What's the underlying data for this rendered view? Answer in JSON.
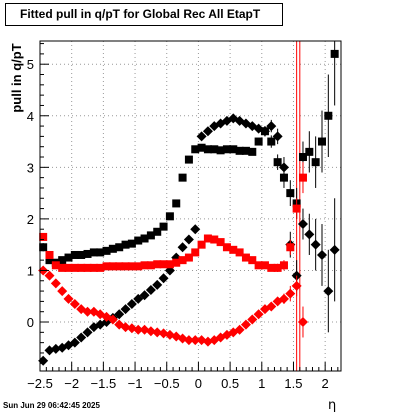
{
  "title": "Fitted pull in q/pT for Global Rec All EtapT",
  "ylabel": "pull in q/pT",
  "xlabel": "η",
  "datestamp": "Sun Jun 29 06:42:45 2025",
  "colors": {
    "black": "#000000",
    "red": "#ff0000",
    "grid": "#999999"
  },
  "chart_data": {
    "type": "scatter",
    "title": "Fitted pull in q/pT for Global Rec All EtapT",
    "xlabel": "η",
    "ylabel": "pull in q/pT",
    "xlim": [
      -2.5,
      2.25
    ],
    "ylim": [
      -0.95,
      5.45
    ],
    "xticks": [
      -2.5,
      -2,
      -1.5,
      -1,
      -0.5,
      0,
      0.5,
      1,
      1.5,
      2
    ],
    "xtick_labels": [
      "−2.5",
      "−2",
      "−1.5",
      "−1",
      "−0.5",
      "0",
      "0.5",
      "1",
      "1.5",
      "2"
    ],
    "yticks": [
      0,
      1,
      2,
      3,
      4,
      5
    ],
    "ytick_labels": [
      "0",
      "1",
      "2",
      "3",
      "4",
      "5"
    ],
    "grid": true,
    "vertical_lines": [
      1.55,
      1.6
    ],
    "series": [
      {
        "color": "#000000",
        "marker": "square",
        "x": [
          -2.45,
          -2.35,
          -2.25,
          -2.15,
          -2.05,
          -1.95,
          -1.85,
          -1.75,
          -1.65,
          -1.55,
          -1.45,
          -1.35,
          -1.25,
          -1.15,
          -1.05,
          -0.95,
          -0.85,
          -0.75,
          -0.65,
          -0.55,
          -0.45,
          -0.35,
          -0.25,
          -0.15,
          -0.05,
          0.05,
          0.15,
          0.25,
          0.35,
          0.45,
          0.55,
          0.65,
          0.75,
          0.85,
          0.95,
          1.05,
          1.15,
          1.25,
          1.35,
          1.45,
          1.55,
          1.65,
          1.75,
          1.85,
          1.95,
          2.05,
          2.15
        ],
        "y": [
          1.45,
          1.2,
          1.15,
          1.2,
          1.25,
          1.3,
          1.3,
          1.32,
          1.35,
          1.35,
          1.38,
          1.42,
          1.45,
          1.5,
          1.52,
          1.58,
          1.62,
          1.68,
          1.75,
          1.85,
          2.05,
          2.3,
          2.8,
          3.15,
          3.35,
          3.38,
          3.35,
          3.35,
          3.33,
          3.35,
          3.35,
          3.32,
          3.32,
          3.3,
          3.5,
          3.7,
          3.5,
          3.1,
          2.8,
          2.5,
          2.3,
          3.2,
          3.3,
          3.1,
          3.5,
          4.0,
          5.2
        ],
        "yerr": [
          0.08,
          0.05,
          0.04,
          0.04,
          0.04,
          0.04,
          0.04,
          0.04,
          0.04,
          0.04,
          0.04,
          0.04,
          0.04,
          0.04,
          0.04,
          0.04,
          0.04,
          0.04,
          0.04,
          0.05,
          0.05,
          0.06,
          0.06,
          0.06,
          0.06,
          0.06,
          0.06,
          0.06,
          0.06,
          0.06,
          0.06,
          0.06,
          0.06,
          0.06,
          0.07,
          0.1,
          0.12,
          0.15,
          0.2,
          0.25,
          0.3,
          0.3,
          0.4,
          0.5,
          0.6,
          0.8,
          1.0
        ]
      },
      {
        "color": "#000000",
        "marker": "diamond",
        "x": [
          -2.45,
          -2.35,
          -2.25,
          -2.15,
          -2.05,
          -1.95,
          -1.85,
          -1.75,
          -1.65,
          -1.55,
          -1.45,
          -1.35,
          -1.25,
          -1.15,
          -1.05,
          -0.95,
          -0.85,
          -0.75,
          -0.65,
          -0.55,
          -0.45,
          -0.35,
          -0.25,
          -0.15,
          -0.05,
          0.05,
          0.15,
          0.25,
          0.35,
          0.45,
          0.55,
          0.65,
          0.75,
          0.85,
          0.95,
          1.05,
          1.15,
          1.25,
          1.35,
          1.45,
          1.55,
          1.65,
          1.75,
          1.85,
          1.95,
          2.05,
          2.15
        ],
        "y": [
          -0.75,
          -0.55,
          -0.52,
          -0.5,
          -0.45,
          -0.4,
          -0.3,
          -0.2,
          -0.1,
          -0.05,
          0.0,
          0.08,
          0.15,
          0.25,
          0.35,
          0.45,
          0.52,
          0.62,
          0.72,
          0.85,
          1.0,
          1.25,
          1.45,
          1.6,
          1.8,
          3.6,
          3.7,
          3.8,
          3.85,
          3.9,
          3.95,
          3.9,
          3.85,
          3.8,
          3.75,
          3.7,
          3.8,
          3.6,
          3.0,
          1.5,
          0.9,
          1.9,
          1.7,
          1.5,
          1.3,
          0.6,
          1.4
        ],
        "yerr": [
          0.06,
          0.04,
          0.04,
          0.04,
          0.04,
          0.04,
          0.04,
          0.04,
          0.04,
          0.04,
          0.04,
          0.04,
          0.04,
          0.04,
          0.04,
          0.04,
          0.04,
          0.04,
          0.04,
          0.05,
          0.05,
          0.06,
          0.06,
          0.06,
          0.06,
          0.06,
          0.06,
          0.06,
          0.06,
          0.06,
          0.06,
          0.06,
          0.06,
          0.06,
          0.07,
          0.1,
          0.12,
          0.15,
          0.2,
          0.25,
          0.3,
          0.3,
          0.4,
          0.5,
          0.6,
          0.8,
          1.0
        ]
      },
      {
        "color": "#ff0000",
        "marker": "square",
        "x": [
          -2.45,
          -2.35,
          -2.25,
          -2.15,
          -2.05,
          -1.95,
          -1.85,
          -1.75,
          -1.65,
          -1.55,
          -1.45,
          -1.35,
          -1.25,
          -1.15,
          -1.05,
          -0.95,
          -0.85,
          -0.75,
          -0.65,
          -0.55,
          -0.45,
          -0.35,
          -0.25,
          -0.15,
          -0.05,
          0.05,
          0.15,
          0.25,
          0.35,
          0.45,
          0.55,
          0.65,
          0.75,
          0.85,
          0.95,
          1.05,
          1.15,
          1.25,
          1.35,
          1.45,
          1.55,
          1.65
        ],
        "y": [
          1.65,
          1.3,
          1.1,
          1.05,
          1.05,
          1.05,
          1.05,
          1.05,
          1.05,
          1.05,
          1.08,
          1.08,
          1.08,
          1.08,
          1.08,
          1.08,
          1.1,
          1.1,
          1.12,
          1.12,
          1.12,
          1.15,
          1.2,
          1.25,
          1.35,
          1.5,
          1.62,
          1.6,
          1.55,
          1.45,
          1.4,
          1.35,
          1.25,
          1.2,
          1.1,
          1.1,
          1.05,
          1.05,
          1.1,
          1.45,
          2.2,
          2.8
        ],
        "yerr": [
          0.06,
          0.04,
          0.03,
          0.03,
          0.03,
          0.03,
          0.03,
          0.03,
          0.03,
          0.03,
          0.03,
          0.03,
          0.03,
          0.03,
          0.03,
          0.03,
          0.03,
          0.03,
          0.03,
          0.03,
          0.03,
          0.03,
          0.03,
          0.03,
          0.03,
          0.03,
          0.03,
          0.03,
          0.03,
          0.03,
          0.03,
          0.03,
          0.03,
          0.03,
          0.04,
          0.05,
          0.06,
          0.08,
          0.1,
          0.15,
          0.2,
          0.3
        ]
      },
      {
        "color": "#ff0000",
        "marker": "diamond",
        "x": [
          -2.45,
          -2.35,
          -2.25,
          -2.15,
          -2.05,
          -1.95,
          -1.85,
          -1.75,
          -1.65,
          -1.55,
          -1.45,
          -1.35,
          -1.25,
          -1.15,
          -1.05,
          -0.95,
          -0.85,
          -0.75,
          -0.65,
          -0.55,
          -0.45,
          -0.35,
          -0.25,
          -0.15,
          -0.05,
          0.05,
          0.15,
          0.25,
          0.35,
          0.45,
          0.55,
          0.65,
          0.75,
          0.85,
          0.95,
          1.05,
          1.15,
          1.25,
          1.35,
          1.45,
          1.55,
          1.65
        ],
        "y": [
          1.0,
          0.9,
          0.75,
          0.6,
          0.45,
          0.35,
          0.25,
          0.2,
          0.2,
          0.15,
          0.1,
          0.05,
          -0.05,
          -0.1,
          -0.12,
          -0.15,
          -0.15,
          -0.18,
          -0.2,
          -0.22,
          -0.25,
          -0.28,
          -0.32,
          -0.35,
          -0.35,
          -0.35,
          -0.38,
          -0.35,
          -0.3,
          -0.25,
          -0.2,
          -0.15,
          -0.05,
          0.05,
          0.15,
          0.25,
          0.3,
          0.4,
          0.45,
          0.55,
          0.7,
          0.0
        ],
        "yerr": [
          0.06,
          0.04,
          0.03,
          0.03,
          0.03,
          0.03,
          0.03,
          0.03,
          0.03,
          0.03,
          0.03,
          0.03,
          0.03,
          0.03,
          0.03,
          0.03,
          0.03,
          0.03,
          0.03,
          0.03,
          0.03,
          0.03,
          0.03,
          0.03,
          0.03,
          0.03,
          0.03,
          0.03,
          0.03,
          0.03,
          0.03,
          0.03,
          0.03,
          0.03,
          0.04,
          0.05,
          0.06,
          0.08,
          0.1,
          0.15,
          0.2,
          0.3
        ]
      }
    ]
  }
}
